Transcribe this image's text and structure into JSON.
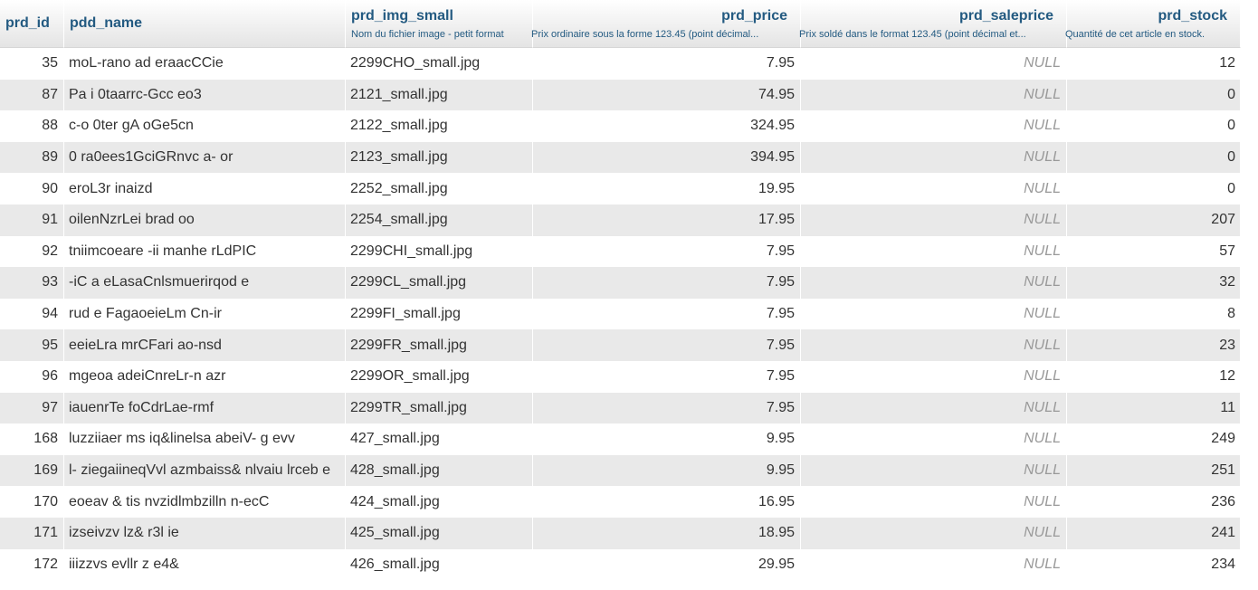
{
  "columns": [
    {
      "name": "prd_id",
      "comment": ""
    },
    {
      "name": "pdd_name",
      "comment": ""
    },
    {
      "name": "prd_img_small",
      "comment": "Nom du fichier image - petit format"
    },
    {
      "name": "prd_price",
      "comment": "Prix ordinaire sous la forme 123.45 (point décimal..."
    },
    {
      "name": "prd_saleprice",
      "comment": "Prix soldé dans le format 123.45 (point décimal et..."
    },
    {
      "name": "prd_stock",
      "comment": "Quantité de cet article en stock."
    }
  ],
  "null_label": "NULL",
  "rows": [
    {
      "id": "35",
      "name": "moL-rano ad  eraacCCie",
      "img": "2299CHO_small.jpg",
      "price": "7.95",
      "stock": "12"
    },
    {
      "id": "87",
      "name": "Pa i 0taarrc-Gcc eo3",
      "img": "2121_small.jpg",
      "price": "74.95",
      "stock": "0"
    },
    {
      "id": "88",
      "name": "c-o 0ter gA oGe5cn",
      "img": "2122_small.jpg",
      "price": "324.95",
      "stock": "0"
    },
    {
      "id": "89",
      "name": "0  ra0ees1GciGRnvc a- or",
      "img": "2123_small.jpg",
      "price": "394.95",
      "stock": "0"
    },
    {
      "id": "90",
      "name": "eroL3r  inaizd",
      "img": "2252_small.jpg",
      "price": "19.95",
      "stock": "0"
    },
    {
      "id": "91",
      "name": "oilenNzrLei brad oo",
      "img": "2254_small.jpg",
      "price": "17.95",
      "stock": "207"
    },
    {
      "id": "92",
      "name": " tniimcoeare  -ii manhe rLdPIC",
      "img": "2299CHI_small.jpg",
      "price": "7.95",
      "stock": "57"
    },
    {
      "id": "93",
      "name": "-iC a eLasaCnlsmuerirqod e",
      "img": "2299CL_small.jpg",
      "price": "7.95",
      "stock": "32"
    },
    {
      "id": "94",
      "name": "rud e FagaoeieLm Cn-ir",
      "img": "2299FI_small.jpg",
      "price": "7.95",
      "stock": "8"
    },
    {
      "id": "95",
      "name": "eeieLra mrCFari  ao-nsd",
      "img": "2299FR_small.jpg",
      "price": "7.95",
      "stock": "23"
    },
    {
      "id": "96",
      "name": "mgeoa adeiCnreLr-n  azr",
      "img": "2299OR_small.jpg",
      "price": "7.95",
      "stock": "12"
    },
    {
      "id": "97",
      "name": "iauenrTe  foCdrLae-rmf",
      "img": "2299TR_small.jpg",
      "price": "7.95",
      "stock": "11"
    },
    {
      "id": "168",
      "name": "luzziiaer ms iq&linelsa abeiV- g evv",
      "img": "427_small.jpg",
      "price": "9.95",
      "stock": "249"
    },
    {
      "id": "169",
      "name": "l- ziegaiineqVvl  azmbaiss& nlvaiu lrceb e",
      "img": "428_small.jpg",
      "price": "9.95",
      "stock": "251"
    },
    {
      "id": "170",
      "name": "eoeav  & tis nvzidlmbzilln n-ecC",
      "img": "424_small.jpg",
      "price": "16.95",
      "stock": "236"
    },
    {
      "id": "171",
      "name": " izseivzv lz& r3l ie",
      "img": "425_small.jpg",
      "price": "18.95",
      "stock": "241"
    },
    {
      "id": "172",
      "name": "iiizzvs evllr z e4&",
      "img": "426_small.jpg",
      "price": "29.95",
      "stock": "234"
    }
  ]
}
